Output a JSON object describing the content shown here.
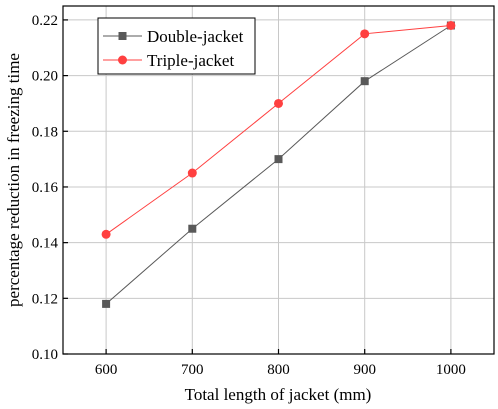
{
  "chart_data": {
    "type": "line",
    "x": [
      600,
      700,
      800,
      900,
      1000
    ],
    "xticks": [
      600,
      700,
      800,
      900,
      1000
    ],
    "yticks": [
      0.1,
      0.12,
      0.14,
      0.16,
      0.18,
      0.2,
      0.22
    ],
    "xlim": [
      550,
      1050
    ],
    "ylim": [
      0.1,
      0.225
    ],
    "xlabel": "Total length of jacket (mm)",
    "ylabel": "percentage reduction in freezing time",
    "grid": true,
    "legend_position": "top-left",
    "series": [
      {
        "name": "Double-jacket",
        "values": [
          0.118,
          0.145,
          0.17,
          0.198,
          0.218
        ],
        "color": "#595959",
        "marker": "square"
      },
      {
        "name": "Triple-jacket",
        "values": [
          0.143,
          0.165,
          0.19,
          0.215,
          0.218
        ],
        "color": "#ff4040",
        "marker": "circle"
      }
    ]
  }
}
